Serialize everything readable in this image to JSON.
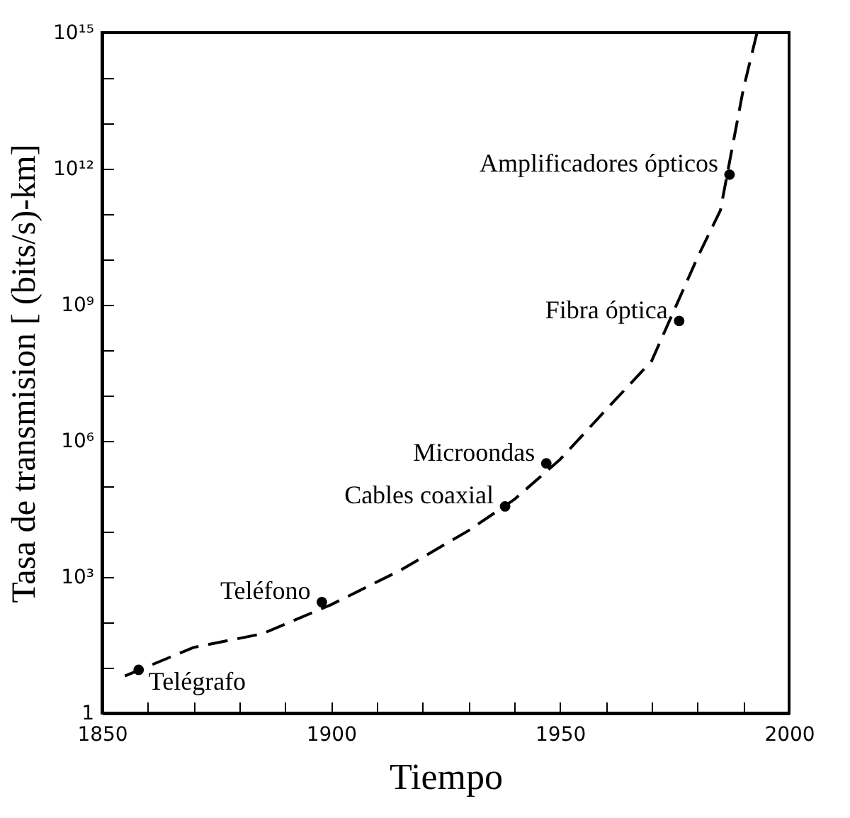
{
  "chart_data": {
    "type": "scatter",
    "xlabel": "Tiempo",
    "ylabel": "Tasa de transmision [ (bits/s)-km]",
    "log": "y",
    "grid": false,
    "xlim": [
      1850,
      2000
    ],
    "ylim": [
      1,
      1000000000000000.0
    ],
    "xticks": [
      1850,
      {
        "value": 1860,
        "label": null
      },
      {
        "value": 1870,
        "label": null
      },
      {
        "value": 1880,
        "label": null
      },
      {
        "value": 1890,
        "label": null
      },
      1900,
      {
        "value": 1910,
        "label": null
      },
      {
        "value": 1920,
        "label": null
      },
      {
        "value": 1930,
        "label": null
      },
      {
        "value": 1940,
        "label": null
      },
      1950,
      {
        "value": 1960,
        "label": null
      },
      {
        "value": 1970,
        "label": null
      },
      {
        "value": 1980,
        "label": null
      },
      {
        "value": 1990,
        "label": null
      },
      2000
    ],
    "yticks": [
      1,
      {
        "value": 10,
        "label": null
      },
      {
        "value": 100,
        "label": null
      },
      {
        "value": 1000,
        "label": "10³"
      },
      {
        "value": 10000,
        "label": null
      },
      {
        "value": 100000,
        "label": null
      },
      {
        "value": 1000000,
        "label": "10⁶"
      },
      {
        "value": 10000000,
        "label": null
      },
      {
        "value": 100000000,
        "label": null
      },
      {
        "value": 1000000000,
        "label": "10⁹"
      },
      {
        "value": 10000000000,
        "label": null
      },
      {
        "value": 100000000000,
        "label": null
      },
      {
        "value": 1000000000000,
        "label": "10¹²"
      },
      {
        "value": 10000000000000,
        "label": null
      },
      {
        "value": 100000000000000,
        "label": null
      },
      {
        "value": 1000000000000000,
        "label": "10¹⁵"
      }
    ],
    "series": [
      {
        "type": "line",
        "color": "#000000",
        "line_style": "dashed",
        "marker": "none",
        "x": [
          1855,
          1870,
          1885,
          1900,
          1915,
          1930,
          1940,
          1950,
          1960,
          1970,
          1980,
          1985,
          1990,
          1993
        ],
        "values": [
          6.6,
          28,
          56,
          245,
          1380,
          10500,
          51000,
          390000,
          4800000,
          58000000,
          11000000000,
          120000000000,
          56000000000000,
          1000000000000000
        ]
      },
      {
        "color": "#000000",
        "marker": "circle",
        "x": [
          1858,
          1898,
          1938,
          1947,
          1976,
          1987
        ],
        "values": [
          9,
          280,
          36000,
          320000,
          440000000,
          740000000000
        ]
      }
    ],
    "annotations": [
      {
        "text": "Telégrafo",
        "x": 1858,
        "y": 9
      },
      {
        "text": "Teléfono",
        "x": 1898,
        "y": 280
      },
      {
        "text": "Cables coaxial",
        "x": 1938,
        "y": 36000
      },
      {
        "text": "Microondas",
        "x": 1947,
        "y": 320000
      },
      {
        "text": "Fibra óptica",
        "x": 1976,
        "y": 440000000
      },
      {
        "text": "Amplificadores ópticos",
        "x": 1987,
        "y": 740000000000
      }
    ]
  }
}
